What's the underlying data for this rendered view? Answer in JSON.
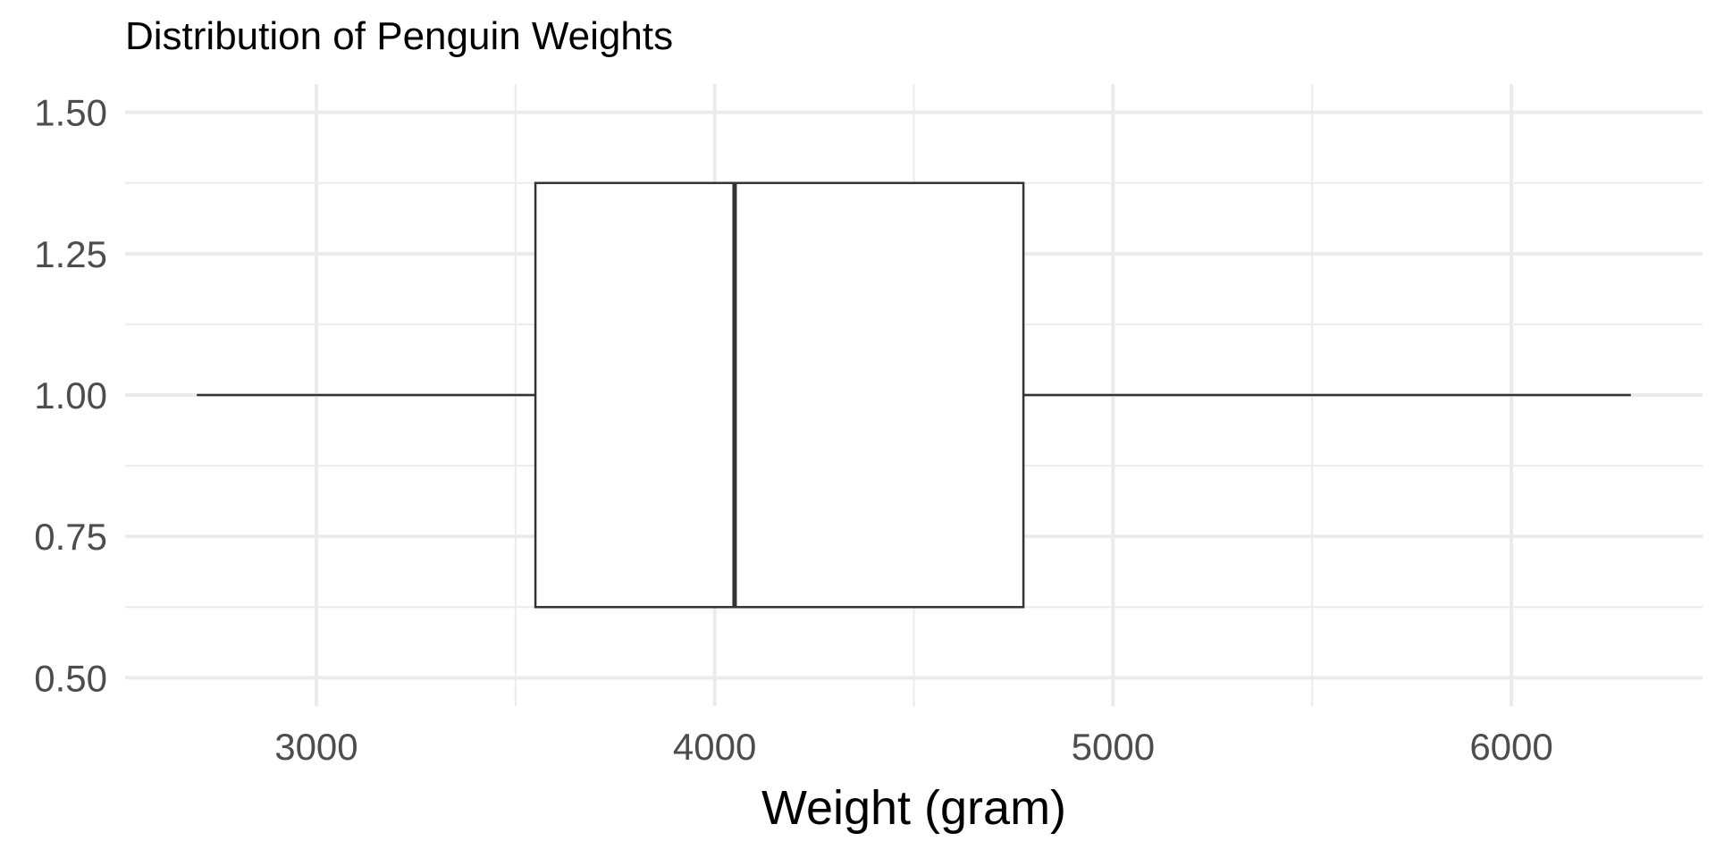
{
  "chart_data": {
    "type": "boxplot",
    "title": "Distribution of Penguin Weights",
    "xlabel": "Weight (gram)",
    "ylabel": "",
    "orientation": "horizontal",
    "xlim": [
      2520,
      6480
    ],
    "ylim": [
      0.45,
      1.55
    ],
    "x_ticks": [
      3000,
      4000,
      5000,
      6000
    ],
    "x_minor_ticks": [
      3500,
      4500,
      5500
    ],
    "y_ticks": [
      0.5,
      0.75,
      1.0,
      1.25,
      1.5
    ],
    "y_tick_labels": [
      "0.50",
      "0.75",
      "1.00",
      "1.25",
      "1.50"
    ],
    "y_minor_ticks": [
      0.625,
      0.875,
      1.125,
      1.375
    ],
    "grid": true,
    "box": {
      "y_center": 1.0,
      "y_min": 0.625,
      "y_max": 1.375,
      "whisker_low": 2700,
      "q1": 3550,
      "median": 4050,
      "q3": 4775,
      "whisker_high": 6300
    },
    "colors": {
      "grid": "#ebebeb",
      "box_stroke": "#333333",
      "box_fill": "#ffffff",
      "tick_text": "#4d4d4d"
    }
  }
}
